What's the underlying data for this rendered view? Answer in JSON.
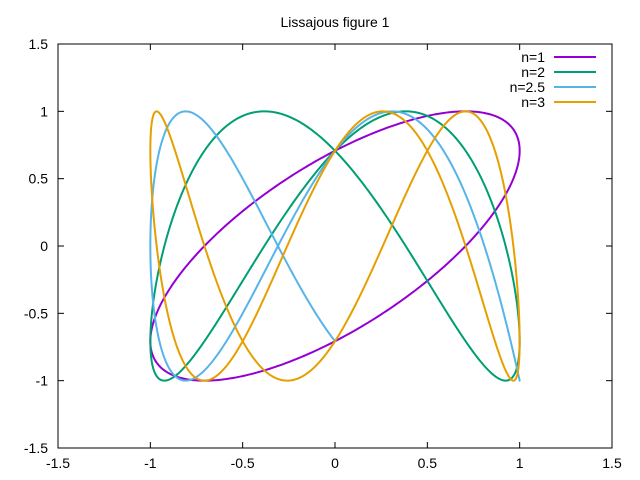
{
  "chart_data": {
    "type": "line",
    "title": "Lissajous figure 1",
    "xlabel": "",
    "ylabel": "",
    "xlim": [
      -1.5,
      1.5
    ],
    "ylim": [
      -1.5,
      1.5
    ],
    "grid": false,
    "legend_position": "top-right",
    "x_ticks": [
      "-1.5",
      "-1",
      "-0.5",
      "0",
      "0.5",
      "1",
      "1.5"
    ],
    "y_ticks": [
      "-1.5",
      "-1",
      "-0.5",
      "0",
      "0.5",
      "1",
      "1.5"
    ],
    "x_tick_values": [
      -1.5,
      -1,
      -0.5,
      0,
      0.5,
      1,
      1.5
    ],
    "y_tick_values": [
      -1.5,
      -1,
      -0.5,
      0,
      0.5,
      1,
      1.5
    ],
    "curve": {
      "x": "sin(t)",
      "y": "sin(n*t + pi/4)",
      "t_range": [
        0,
        6.2832
      ]
    },
    "series": [
      {
        "name": "n=1",
        "n": 1,
        "color": "#9400d3"
      },
      {
        "name": "n=2",
        "n": 2,
        "color": "#009e73"
      },
      {
        "name": "n=2.5",
        "n": 2.5,
        "color": "#56b4e9"
      },
      {
        "name": "n=3",
        "n": 3,
        "color": "#e69f00"
      }
    ]
  }
}
